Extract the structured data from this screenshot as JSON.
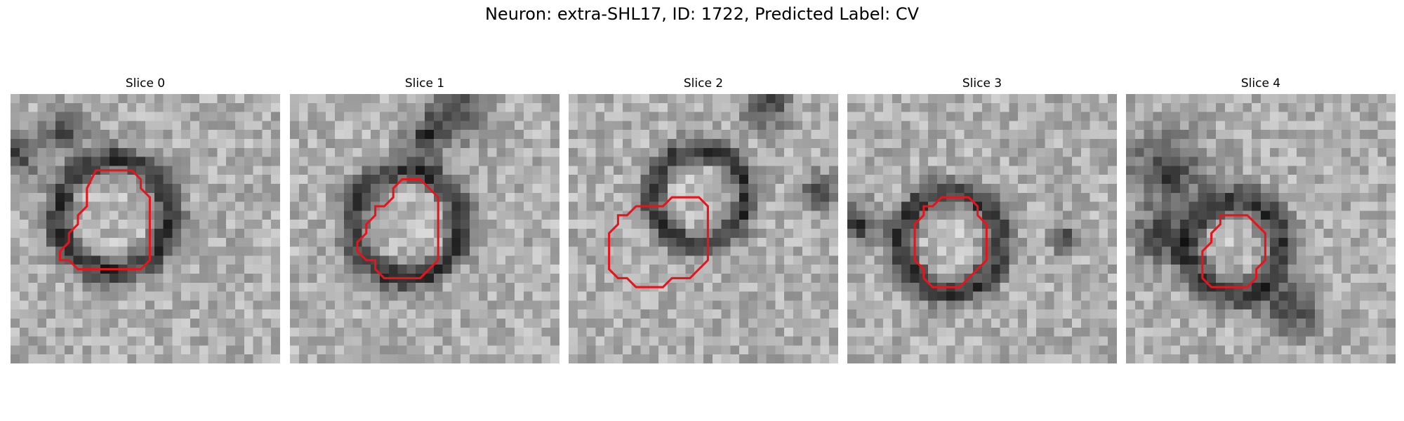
{
  "figure": {
    "title": "Neuron: extra-SHL17, ID: 1722, Predicted Label: CV"
  },
  "colors": {
    "outline": "#e8141c",
    "background": "#ffffff"
  },
  "panels": [
    {
      "title": "Slice 0",
      "outline": [
        [
          9.5,
          8.5
        ],
        [
          13.5,
          8.5
        ],
        [
          14.5,
          9.5
        ],
        [
          14.5,
          10.5
        ],
        [
          15.5,
          11.5
        ],
        [
          15.5,
          18.5
        ],
        [
          14.5,
          19.5
        ],
        [
          7.5,
          19.5
        ],
        [
          6.5,
          18.5
        ],
        [
          5.5,
          18.5
        ],
        [
          5.5,
          17.5
        ],
        [
          6.5,
          16.5
        ],
        [
          6.5,
          15.5
        ],
        [
          7.5,
          14.5
        ],
        [
          7.5,
          13.5
        ],
        [
          8.5,
          12.5
        ],
        [
          8.5,
          10.5
        ]
      ]
    },
    {
      "title": "Slice 1",
      "outline": [
        [
          11.5,
          10.5
        ],
        [
          12.5,
          9.5
        ],
        [
          14.5,
          9.5
        ],
        [
          16.5,
          11.5
        ],
        [
          16.5,
          18.5
        ],
        [
          15.5,
          19.5
        ],
        [
          14.5,
          20.5
        ],
        [
          10.5,
          20.5
        ],
        [
          9.5,
          19.5
        ],
        [
          9.5,
          18.5
        ],
        [
          8.5,
          18.5
        ],
        [
          7.5,
          17.5
        ],
        [
          7.5,
          16.5
        ],
        [
          8.5,
          15.5
        ],
        [
          8.5,
          14.5
        ],
        [
          9.5,
          13.5
        ],
        [
          9.5,
          12.5
        ],
        [
          10.5,
          12.5
        ],
        [
          11.5,
          11.5
        ]
      ]
    },
    {
      "title": "Slice 2",
      "outline": [
        [
          7.5,
          12.5
        ],
        [
          10.5,
          12.5
        ],
        [
          11.5,
          11.5
        ],
        [
          14.5,
          11.5
        ],
        [
          15.5,
          12.5
        ],
        [
          15.5,
          18.5
        ],
        [
          14.5,
          19.5
        ],
        [
          13.5,
          20.5
        ],
        [
          11.5,
          20.5
        ],
        [
          10.5,
          21.5
        ],
        [
          7.5,
          21.5
        ],
        [
          6.5,
          20.5
        ],
        [
          5.5,
          20.5
        ],
        [
          4.5,
          19.5
        ],
        [
          4.5,
          15.5
        ],
        [
          5.5,
          14.5
        ],
        [
          5.5,
          13.5
        ],
        [
          6.5,
          13.5
        ]
      ]
    },
    {
      "title": "Slice 3",
      "outline": [
        [
          10.5,
          11.5
        ],
        [
          13.5,
          11.5
        ],
        [
          14.5,
          12.5
        ],
        [
          14.5,
          13.5
        ],
        [
          15.5,
          14.5
        ],
        [
          15.5,
          18.5
        ],
        [
          14.5,
          19.5
        ],
        [
          13.5,
          20.5
        ],
        [
          12.5,
          21.5
        ],
        [
          9.5,
          21.5
        ],
        [
          8.5,
          20.5
        ],
        [
          8.5,
          19.5
        ],
        [
          7.5,
          18.5
        ],
        [
          7.5,
          14.5
        ],
        [
          8.5,
          13.5
        ],
        [
          8.5,
          12.5
        ],
        [
          9.5,
          12.5
        ]
      ]
    },
    {
      "title": "Slice 4",
      "outline": [
        [
          10.5,
          13.5
        ],
        [
          13.5,
          13.5
        ],
        [
          14.5,
          14.5
        ],
        [
          15.5,
          15.5
        ],
        [
          15.5,
          18.5
        ],
        [
          14.5,
          19.5
        ],
        [
          14.5,
          20.5
        ],
        [
          13.5,
          21.5
        ],
        [
          9.5,
          21.5
        ],
        [
          8.5,
          20.5
        ],
        [
          8.5,
          17.5
        ],
        [
          9.5,
          16.5
        ],
        [
          9.5,
          15.5
        ],
        [
          10.5,
          14.5
        ]
      ]
    }
  ]
}
